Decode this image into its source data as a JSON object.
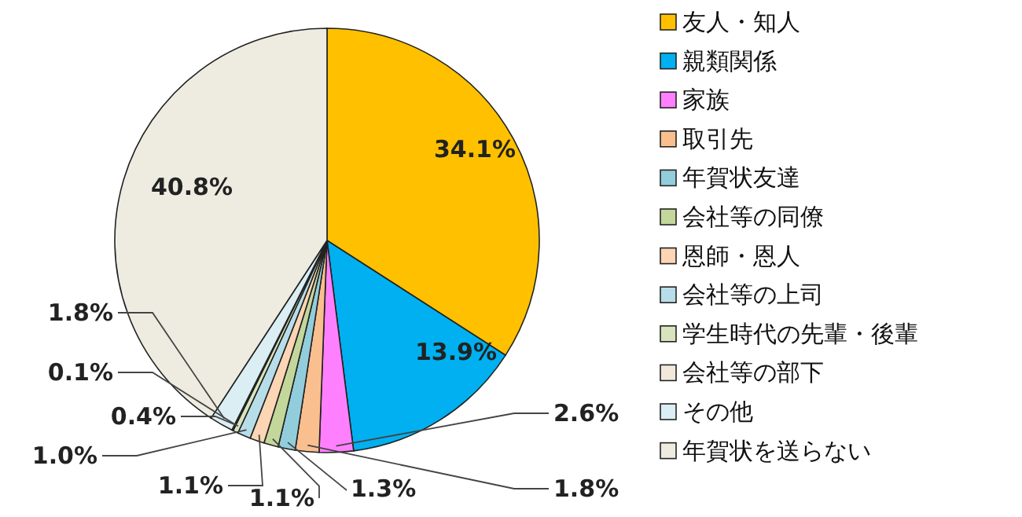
{
  "chart_data": {
    "type": "pie",
    "categories": [
      "友人・知人",
      "親類関係",
      "家族",
      "取引先",
      "年賀状友達",
      "会社等の同僚",
      "恩師・恩人",
      "会社等の上司",
      "学生時代の先輩・後輩",
      "会社等の部下",
      "その他",
      "年賀状を送らない"
    ],
    "values": [
      34.1,
      13.9,
      2.6,
      1.8,
      1.3,
      1.1,
      1.1,
      1.0,
      0.4,
      0.1,
      1.8,
      40.8
    ],
    "colors": [
      "#ffc000",
      "#00b0f0",
      "#ff80ff",
      "#fabf8f",
      "#92cddc",
      "#c4d79b",
      "#fcd5b4",
      "#b7dee8",
      "#d8e4bc",
      "#f2e9dc",
      "#daeef3",
      "#eeece1"
    ],
    "value_labels": [
      "34.1%",
      "13.9%",
      "2.6%",
      "1.8%",
      "1.3%",
      "1.1%",
      "1.1%",
      "1.0%",
      "0.4%",
      "0.1%",
      "1.8%",
      "40.8%"
    ],
    "legend": "right"
  }
}
